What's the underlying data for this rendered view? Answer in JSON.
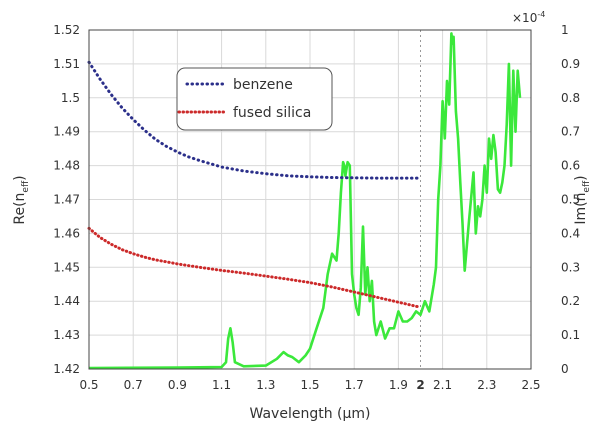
{
  "chart_data": {
    "type": "line",
    "xlabel": "Wavelength (μm)",
    "ylabel_left": "Re(neff)",
    "ylabel_right": "Im(neff)",
    "right_multiplier": "×10",
    "right_multiplier_exp": "-4",
    "xlim": [
      0.5,
      2.5
    ],
    "ylim_left": [
      1.42,
      1.52
    ],
    "ylim_right": [
      0,
      1
    ],
    "x_ticks": [
      "0.5",
      "0.7",
      "0.9",
      "1.1",
      "1.3",
      "1.5",
      "1.7",
      "1.9",
      "2",
      "2.1",
      "2.3",
      "2.5"
    ],
    "x_tick_values": [
      0.5,
      0.7,
      0.9,
      1.1,
      1.3,
      1.5,
      1.7,
      1.9,
      2.0,
      2.1,
      2.3,
      2.5
    ],
    "x_bold_tick": "2",
    "y_left_ticks": [
      "1.42",
      "1.43",
      "1.44",
      "1.45",
      "1.46",
      "1.47",
      "1.48",
      "1.49",
      "1.5",
      "1.51",
      "1.52"
    ],
    "y_right_ticks": [
      "0",
      "0.1",
      "0.2",
      "0.3",
      "0.4",
      "0.5",
      "0.6",
      "0.7",
      "0.8",
      "0.9",
      "1"
    ],
    "vertical_marker_x": 2.0,
    "grid": true,
    "legend_position": "top-center",
    "series": [
      {
        "name": "benzene",
        "axis": "left",
        "style": "dotted",
        "color": "#2b2f8a",
        "x": [
          0.5,
          0.55,
          0.6,
          0.65,
          0.7,
          0.75,
          0.8,
          0.85,
          0.9,
          0.95,
          1.0,
          1.1,
          1.2,
          1.3,
          1.4,
          1.5,
          1.6,
          1.7,
          1.8,
          1.9,
          2.0
        ],
        "y": [
          1.5105,
          1.5055,
          1.501,
          1.497,
          1.4936,
          1.4905,
          1.4878,
          1.4857,
          1.484,
          1.4826,
          1.4815,
          1.4796,
          1.4784,
          1.4776,
          1.477,
          1.4767,
          1.4765,
          1.4764,
          1.4763,
          1.4763,
          1.4763
        ]
      },
      {
        "name": "fused silica",
        "axis": "left",
        "style": "dotted",
        "color": "#cc2a2a",
        "x": [
          0.5,
          0.55,
          0.6,
          0.65,
          0.7,
          0.75,
          0.8,
          0.9,
          1.0,
          1.1,
          1.2,
          1.3,
          1.4,
          1.5,
          1.6,
          1.7,
          1.8,
          1.9,
          2.0
        ],
        "y": [
          1.4615,
          1.4588,
          1.4568,
          1.4552,
          1.454,
          1.453,
          1.4522,
          1.451,
          1.45,
          1.4491,
          1.4483,
          1.4474,
          1.4465,
          1.4455,
          1.4442,
          1.4427,
          1.4412,
          1.4397,
          1.4382
        ]
      },
      {
        "name": "Im(neff)",
        "axis": "right",
        "style": "solid",
        "color": "#3be83b",
        "x": [
          0.5,
          0.9,
          1.0,
          1.1,
          1.12,
          1.13,
          1.14,
          1.15,
          1.16,
          1.2,
          1.3,
          1.35,
          1.38,
          1.4,
          1.42,
          1.45,
          1.48,
          1.5,
          1.53,
          1.56,
          1.58,
          1.6,
          1.62,
          1.63,
          1.64,
          1.65,
          1.655,
          1.66,
          1.67,
          1.68,
          1.69,
          1.7,
          1.71,
          1.72,
          1.73,
          1.74,
          1.75,
          1.76,
          1.77,
          1.78,
          1.79,
          1.8,
          1.82,
          1.84,
          1.86,
          1.88,
          1.9,
          1.92,
          1.94,
          1.96,
          1.98,
          2.0,
          2.02,
          2.04,
          2.06,
          2.07,
          2.08,
          2.09,
          2.1,
          2.11,
          2.12,
          2.13,
          2.14,
          2.145,
          2.15,
          2.16,
          2.17,
          2.18,
          2.19,
          2.2,
          2.22,
          2.24,
          2.25,
          2.26,
          2.27,
          2.28,
          2.29,
          2.3,
          2.31,
          2.32,
          2.33,
          2.34,
          2.35,
          2.36,
          2.37,
          2.38,
          2.39,
          2.4,
          2.41,
          2.42,
          2.43,
          2.44,
          2.45
        ],
        "y": [
          0.003,
          0.004,
          0.005,
          0.006,
          0.02,
          0.09,
          0.12,
          0.08,
          0.02,
          0.008,
          0.01,
          0.03,
          0.05,
          0.04,
          0.035,
          0.02,
          0.04,
          0.06,
          0.12,
          0.18,
          0.28,
          0.34,
          0.32,
          0.4,
          0.52,
          0.61,
          0.6,
          0.57,
          0.61,
          0.6,
          0.28,
          0.22,
          0.18,
          0.16,
          0.24,
          0.42,
          0.22,
          0.3,
          0.2,
          0.26,
          0.14,
          0.1,
          0.14,
          0.09,
          0.12,
          0.12,
          0.17,
          0.14,
          0.14,
          0.15,
          0.17,
          0.16,
          0.2,
          0.17,
          0.25,
          0.3,
          0.5,
          0.6,
          0.79,
          0.68,
          0.85,
          0.78,
          0.99,
          0.96,
          0.98,
          0.76,
          0.68,
          0.55,
          0.43,
          0.29,
          0.44,
          0.58,
          0.4,
          0.48,
          0.45,
          0.5,
          0.6,
          0.52,
          0.68,
          0.62,
          0.69,
          0.64,
          0.53,
          0.52,
          0.55,
          0.6,
          0.72,
          0.9,
          0.6,
          0.88,
          0.7,
          0.88,
          0.8
        ]
      }
    ]
  }
}
